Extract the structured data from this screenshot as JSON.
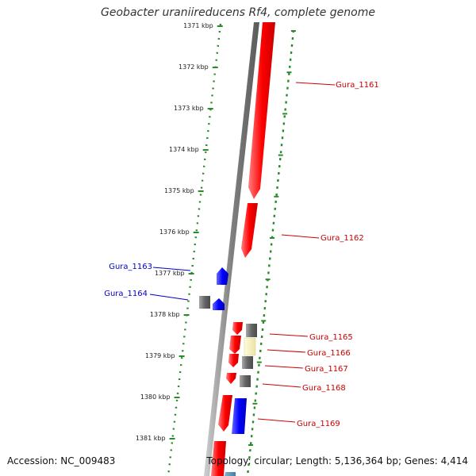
{
  "title": "Geobacter uraniireducens Rf4, complete genome",
  "footer": {
    "accession": "Accession: NC_009483",
    "topology": "Topology: circular; Length: 5,136,364 bp; Genes: 4,414"
  },
  "colors": {
    "forward_gene": "#ff0000",
    "reverse_gene": "#0000ff",
    "rna_gene": "#666666",
    "other_feature": "#f2e9a6",
    "tick": "#2b8a2b",
    "backbone": "#888888",
    "forward_label": "#cc0000",
    "reverse_label": "#0000cc"
  },
  "scale": {
    "unit": "kbp",
    "ticks": [
      "1371 kbp",
      "1372 kbp",
      "1373 kbp",
      "1374 kbp",
      "1375 kbp",
      "1376 kbp",
      "1377 kbp",
      "1378 kbp",
      "1379 kbp",
      "1380 kbp",
      "1381 kbp"
    ]
  },
  "gene_labels": [
    {
      "text": "Gura_1161",
      "strand": "forward"
    },
    {
      "text": "Gura_1162",
      "strand": "forward"
    },
    {
      "text": "Gura_1163",
      "strand": "reverse"
    },
    {
      "text": "Gura_1164",
      "strand": "reverse"
    },
    {
      "text": "Gura_1165",
      "strand": "forward"
    },
    {
      "text": "Gura_1166",
      "strand": "forward"
    },
    {
      "text": "Gura_1167",
      "strand": "forward"
    },
    {
      "text": "Gura_1168",
      "strand": "forward"
    },
    {
      "text": "Gura_1169",
      "strand": "forward"
    }
  ]
}
